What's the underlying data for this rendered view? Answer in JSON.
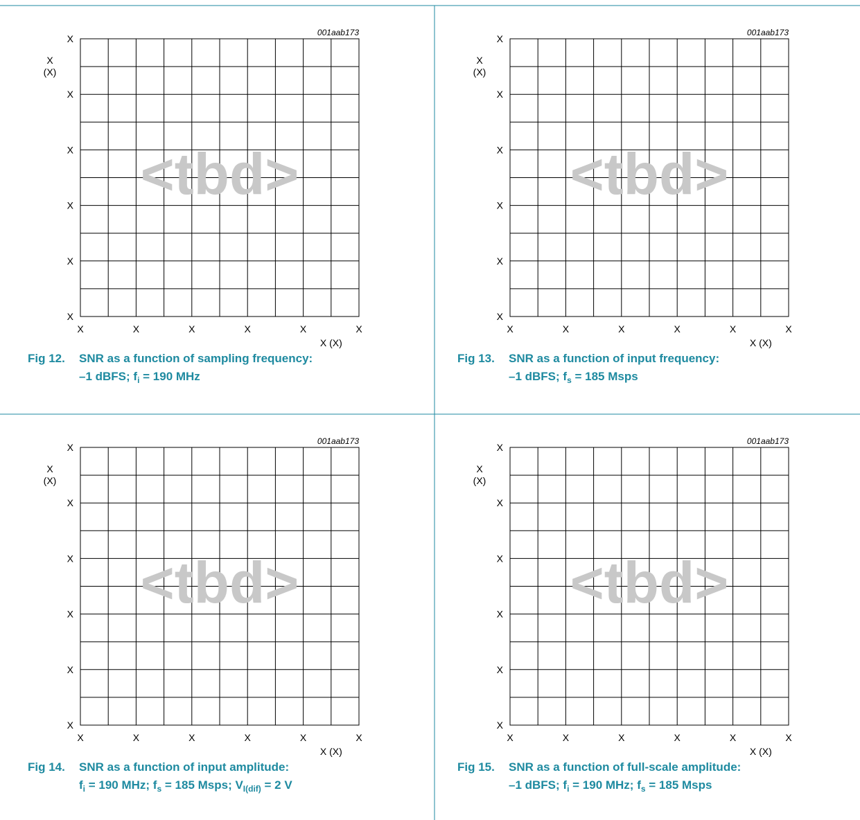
{
  "figures": [
    {
      "id": "fig12",
      "code": "001aab173",
      "watermark": "<tbd>",
      "number": "Fig 12.",
      "caption_line1": "SNR as a function of sampling frequency:",
      "caption_line2": [
        {
          "t": "–1 dBFS; f"
        },
        {
          "t": "i",
          "sub": true
        },
        {
          "t": " = 190 MHz"
        }
      ]
    },
    {
      "id": "fig13",
      "code": "001aab173",
      "watermark": "<tbd>",
      "number": "Fig 13.",
      "caption_line1": "SNR as a function of input frequency:",
      "caption_line2": [
        {
          "t": "–1 dBFS; f"
        },
        {
          "t": "s",
          "sub": true
        },
        {
          "t": " = 185 Msps"
        }
      ]
    },
    {
      "id": "fig14",
      "code": "001aab173",
      "watermark": "<tbd>",
      "number": "Fig 14.",
      "caption_line1": "SNR as a function of input amplitude:",
      "caption_line2": [
        {
          "t": "f"
        },
        {
          "t": "i",
          "sub": true
        },
        {
          "t": " = 190 MHz; f"
        },
        {
          "t": "s",
          "sub": true
        },
        {
          "t": " = 185 Msps; V"
        },
        {
          "t": "I(dif)",
          "sub": true
        },
        {
          "t": " = 2 V"
        }
      ]
    },
    {
      "id": "fig15",
      "code": "001aab173",
      "watermark": "<tbd>",
      "number": "Fig 15.",
      "caption_line1": "SNR as a function of full-scale amplitude:",
      "caption_line2": [
        {
          "t": "–1 dBFS; f"
        },
        {
          "t": "i",
          "sub": true
        },
        {
          "t": " = 190 MHz; f"
        },
        {
          "t": "s",
          "sub": true
        },
        {
          "t": " = 185 Msps"
        }
      ]
    }
  ],
  "chart_data": [
    {
      "type": "line",
      "series": [],
      "x_ticks": [
        "X",
        "X",
        "X",
        "X",
        "X",
        "X"
      ],
      "y_ticks": [
        "X",
        "X",
        "X",
        "X",
        "X",
        "X"
      ],
      "xlabel": "X (X)",
      "ylabel": [
        "X",
        "(X)"
      ],
      "grid": true,
      "grid_columns": 10,
      "grid_rows": 10
    },
    {
      "type": "line",
      "series": [],
      "x_ticks": [
        "X",
        "X",
        "X",
        "X",
        "X",
        "X"
      ],
      "y_ticks": [
        "X",
        "X",
        "X",
        "X",
        "X",
        "X"
      ],
      "xlabel": "X (X)",
      "ylabel": [
        "X",
        "(X)"
      ],
      "grid": true,
      "grid_columns": 10,
      "grid_rows": 10
    },
    {
      "type": "line",
      "series": [],
      "x_ticks": [
        "X",
        "X",
        "X",
        "X",
        "X",
        "X"
      ],
      "y_ticks": [
        "X",
        "X",
        "X",
        "X",
        "X",
        "X"
      ],
      "xlabel": "X (X)",
      "ylabel": [
        "X",
        "(X)"
      ],
      "grid": true,
      "grid_columns": 10,
      "grid_rows": 10
    },
    {
      "type": "line",
      "series": [],
      "x_ticks": [
        "X",
        "X",
        "X",
        "X",
        "X",
        "X"
      ],
      "y_ticks": [
        "X",
        "X",
        "X",
        "X",
        "X",
        "X"
      ],
      "xlabel": "X (X)",
      "ylabel": [
        "X",
        "(X)"
      ],
      "grid": true,
      "grid_columns": 10,
      "grid_rows": 10
    }
  ]
}
